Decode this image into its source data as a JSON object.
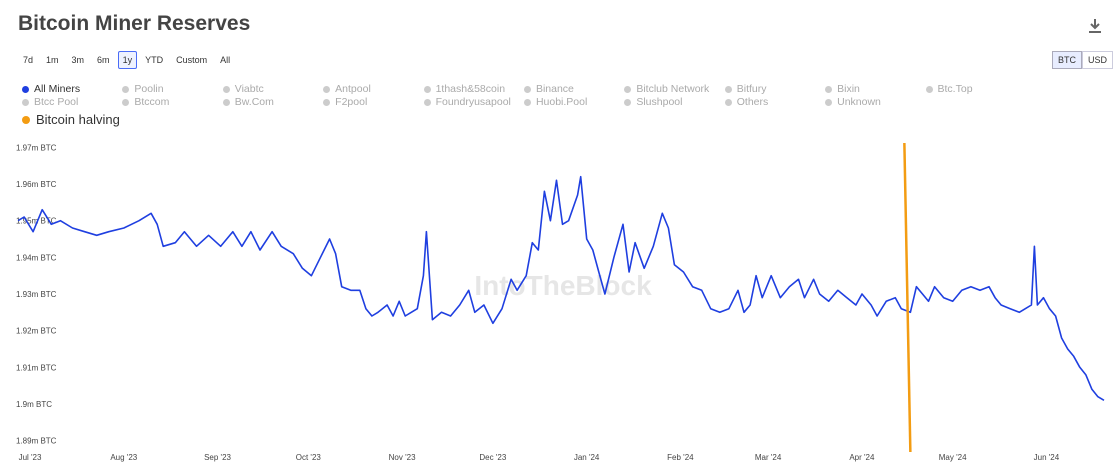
{
  "page": {
    "title": "Bitcoin Miner Reserves"
  },
  "ranges": [
    "7d",
    "1m",
    "3m",
    "6m",
    "1y",
    "YTD",
    "Custom",
    "All"
  ],
  "active_range": "1y",
  "units": [
    "BTC",
    "USD"
  ],
  "active_unit": "BTC",
  "legend": {
    "items": [
      "All Miners",
      "Poolin",
      "Viabtc",
      "Antpool",
      "1thash&58coin",
      "Binance",
      "Bitclub Network",
      "Bitfury",
      "Bixin",
      "Btc.Top",
      "Btcc Pool",
      "Btccom",
      "Bw.Com",
      "F2pool",
      "Foundryusapool",
      "Huobi.Pool",
      "Slushpool",
      "Others",
      "Unknown"
    ],
    "active": "All Miners",
    "active_color": "#1f3fe0",
    "inactive_color": "#cccccc",
    "halving_label": "Bitcoin halving",
    "halving_color": "#f39c12"
  },
  "watermark": "IntoTheBlock",
  "chart_data": {
    "type": "line",
    "title": "Bitcoin Miner Reserves",
    "xlabel": "",
    "ylabel": "",
    "y_ticks": [
      "1.97m BTC",
      "1.96m BTC",
      "1.95m BTC",
      "1.94m BTC",
      "1.93m BTC",
      "1.92m BTC",
      "1.91m BTC",
      "1.9m BTC",
      "1.89m BTC"
    ],
    "y_tick_values": [
      1.97,
      1.96,
      1.95,
      1.94,
      1.93,
      1.92,
      1.91,
      1.9,
      1.89
    ],
    "x_ticks": [
      "Jul '23",
      "Aug '23",
      "Sep '23",
      "Oct '23",
      "Nov '23",
      "Dec '23",
      "Jan '24",
      "Feb '24",
      "Mar '24",
      "Apr '24",
      "May '24",
      "Jun '24"
    ],
    "x_tick_dates": [
      "2023-07-01",
      "2023-08-01",
      "2023-09-01",
      "2023-10-01",
      "2023-11-01",
      "2023-12-01",
      "2024-01-01",
      "2024-02-01",
      "2024-03-01",
      "2024-04-01",
      "2024-05-01",
      "2024-06-01"
    ],
    "x_range": [
      "2023-07-01",
      "2024-06-24"
    ],
    "ylim": [
      1.888,
      1.972
    ],
    "unit": "million BTC",
    "grid": false,
    "series": [
      {
        "name": "All Miners",
        "color": "#1f3fe0",
        "points": [
          [
            "2023-07-01",
            1.95
          ],
          [
            "2023-07-03",
            1.951
          ],
          [
            "2023-07-06",
            1.947
          ],
          [
            "2023-07-09",
            1.953
          ],
          [
            "2023-07-12",
            1.949
          ],
          [
            "2023-07-15",
            1.95
          ],
          [
            "2023-07-19",
            1.948
          ],
          [
            "2023-07-23",
            1.947
          ],
          [
            "2023-07-27",
            1.946
          ],
          [
            "2023-07-31",
            1.947
          ],
          [
            "2023-08-05",
            1.948
          ],
          [
            "2023-08-10",
            1.95
          ],
          [
            "2023-08-14",
            1.952
          ],
          [
            "2023-08-16",
            1.949
          ],
          [
            "2023-08-18",
            1.943
          ],
          [
            "2023-08-22",
            1.944
          ],
          [
            "2023-08-25",
            1.947
          ],
          [
            "2023-08-29",
            1.943
          ],
          [
            "2023-09-02",
            1.946
          ],
          [
            "2023-09-06",
            1.943
          ],
          [
            "2023-09-10",
            1.947
          ],
          [
            "2023-09-13",
            1.943
          ],
          [
            "2023-09-16",
            1.947
          ],
          [
            "2023-09-19",
            1.942
          ],
          [
            "2023-09-23",
            1.947
          ],
          [
            "2023-09-26",
            1.943
          ],
          [
            "2023-09-30",
            1.941
          ],
          [
            "2023-10-03",
            1.937
          ],
          [
            "2023-10-06",
            1.935
          ],
          [
            "2023-10-09",
            1.94
          ],
          [
            "2023-10-12",
            1.945
          ],
          [
            "2023-10-14",
            1.941
          ],
          [
            "2023-10-16",
            1.932
          ],
          [
            "2023-10-19",
            1.931
          ],
          [
            "2023-10-22",
            1.931
          ],
          [
            "2023-10-24",
            1.926
          ],
          [
            "2023-10-26",
            1.924
          ],
          [
            "2023-10-28",
            1.925
          ],
          [
            "2023-10-31",
            1.927
          ],
          [
            "2023-11-02",
            1.924
          ],
          [
            "2023-11-04",
            1.928
          ],
          [
            "2023-11-06",
            1.924
          ],
          [
            "2023-11-08",
            1.925
          ],
          [
            "2023-11-10",
            1.926
          ],
          [
            "2023-11-12",
            1.935
          ],
          [
            "2023-11-13",
            1.947
          ],
          [
            "2023-11-15",
            1.923
          ],
          [
            "2023-11-18",
            1.925
          ],
          [
            "2023-11-21",
            1.924
          ],
          [
            "2023-11-24",
            1.927
          ],
          [
            "2023-11-27",
            1.931
          ],
          [
            "2023-11-29",
            1.925
          ],
          [
            "2023-12-02",
            1.927
          ],
          [
            "2023-12-05",
            1.922
          ],
          [
            "2023-12-08",
            1.926
          ],
          [
            "2023-12-11",
            1.934
          ],
          [
            "2023-12-13",
            1.931
          ],
          [
            "2023-12-16",
            1.935
          ],
          [
            "2023-12-18",
            1.944
          ],
          [
            "2023-12-20",
            1.942
          ],
          [
            "2023-12-22",
            1.958
          ],
          [
            "2023-12-24",
            1.95
          ],
          [
            "2023-12-26",
            1.961
          ],
          [
            "2023-12-28",
            1.949
          ],
          [
            "2023-12-30",
            1.95
          ],
          [
            "2024-01-02",
            1.957
          ],
          [
            "2024-01-03",
            1.962
          ],
          [
            "2024-01-05",
            1.945
          ],
          [
            "2024-01-07",
            1.942
          ],
          [
            "2024-01-09",
            1.936
          ],
          [
            "2024-01-11",
            1.93
          ],
          [
            "2024-01-14",
            1.94
          ],
          [
            "2024-01-17",
            1.949
          ],
          [
            "2024-01-19",
            1.936
          ],
          [
            "2024-01-21",
            1.944
          ],
          [
            "2024-01-24",
            1.937
          ],
          [
            "2024-01-27",
            1.943
          ],
          [
            "2024-01-30",
            1.952
          ],
          [
            "2024-02-01",
            1.948
          ],
          [
            "2024-02-03",
            1.938
          ],
          [
            "2024-02-06",
            1.936
          ],
          [
            "2024-02-09",
            1.932
          ],
          [
            "2024-02-12",
            1.931
          ],
          [
            "2024-02-15",
            1.926
          ],
          [
            "2024-02-18",
            1.925
          ],
          [
            "2024-02-21",
            1.926
          ],
          [
            "2024-02-24",
            1.931
          ],
          [
            "2024-02-26",
            1.925
          ],
          [
            "2024-02-28",
            1.927
          ],
          [
            "2024-03-01",
            1.935
          ],
          [
            "2024-03-03",
            1.929
          ],
          [
            "2024-03-06",
            1.935
          ],
          [
            "2024-03-09",
            1.929
          ],
          [
            "2024-03-12",
            1.932
          ],
          [
            "2024-03-15",
            1.934
          ],
          [
            "2024-03-17",
            1.929
          ],
          [
            "2024-03-20",
            1.934
          ],
          [
            "2024-03-22",
            1.93
          ],
          [
            "2024-03-25",
            1.928
          ],
          [
            "2024-03-28",
            1.931
          ],
          [
            "2024-03-31",
            1.929
          ],
          [
            "2024-04-03",
            1.927
          ],
          [
            "2024-04-05",
            1.93
          ],
          [
            "2024-04-08",
            1.927
          ],
          [
            "2024-04-10",
            1.924
          ],
          [
            "2024-04-13",
            1.928
          ],
          [
            "2024-04-16",
            1.929
          ],
          [
            "2024-04-18",
            1.926
          ],
          [
            "2024-04-21",
            1.925
          ],
          [
            "2024-04-23",
            1.932
          ],
          [
            "2024-04-25",
            1.93
          ],
          [
            "2024-04-27",
            1.928
          ],
          [
            "2024-04-29",
            1.932
          ],
          [
            "2024-05-02",
            1.929
          ],
          [
            "2024-05-05",
            1.928
          ],
          [
            "2024-05-08",
            1.931
          ],
          [
            "2024-05-11",
            1.932
          ],
          [
            "2024-05-14",
            1.931
          ],
          [
            "2024-05-17",
            1.932
          ],
          [
            "2024-05-19",
            1.929
          ],
          [
            "2024-05-21",
            1.927
          ],
          [
            "2024-05-24",
            1.926
          ],
          [
            "2024-05-27",
            1.925
          ],
          [
            "2024-05-29",
            1.926
          ],
          [
            "2024-05-31",
            1.927
          ],
          [
            "2024-06-01",
            1.943
          ],
          [
            "2024-06-02",
            1.927
          ],
          [
            "2024-06-04",
            1.929
          ],
          [
            "2024-06-06",
            1.926
          ],
          [
            "2024-06-08",
            1.924
          ],
          [
            "2024-06-10",
            1.918
          ],
          [
            "2024-06-12",
            1.915
          ],
          [
            "2024-06-14",
            1.913
          ],
          [
            "2024-06-16",
            1.91
          ],
          [
            "2024-06-18",
            1.908
          ],
          [
            "2024-06-20",
            1.904
          ],
          [
            "2024-06-22",
            1.902
          ],
          [
            "2024-06-24",
            1.901
          ]
        ]
      }
    ],
    "halving": {
      "date": "2024-04-20",
      "label": "Bitcoin halving",
      "color": "#f39c12"
    }
  }
}
